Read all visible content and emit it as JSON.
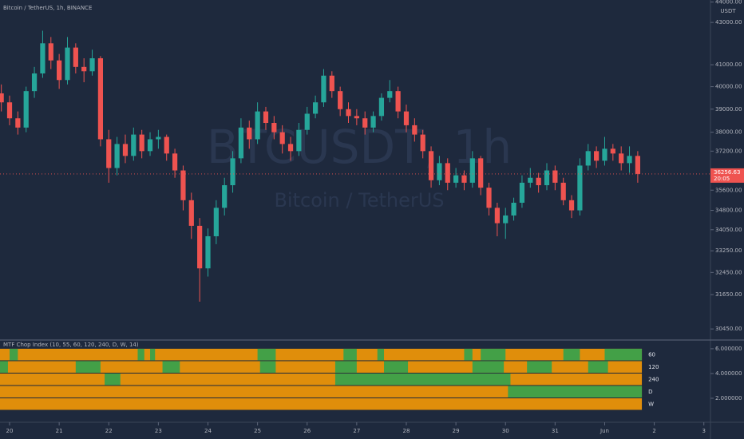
{
  "header": {
    "symbol": "Bitcoin / TetherUS, 1h, BINANCE",
    "currency": "USDT",
    "watermark": "BTCUSDT, 1h",
    "watermark_sub": "Bitcoin / TetherUS",
    "last_price": 36256.63,
    "countdown": "20:05"
  },
  "chart_data": {
    "type": "candlestick",
    "log_scale": true,
    "up_color": "#26a69a",
    "down_color": "#ef5350",
    "ylim": [
      30100,
      44100
    ],
    "yticks": [
      {
        "value": 44000,
        "label": "44000.00"
      },
      {
        "value": 43000,
        "label": "43000.00"
      },
      {
        "value": 41000,
        "label": "41000.00"
      },
      {
        "value": 40000,
        "label": "40000.00"
      },
      {
        "value": 39000,
        "label": "39000.00"
      },
      {
        "value": 38000,
        "label": "38000.00"
      },
      {
        "value": 37200,
        "label": "37200.00"
      },
      {
        "value": 35600,
        "label": "35600.00"
      },
      {
        "value": 34800,
        "label": "34800.00"
      },
      {
        "value": 34050,
        "label": "34050.00"
      },
      {
        "value": 33250,
        "label": "33250.00"
      },
      {
        "value": 32450,
        "label": "32450.00"
      },
      {
        "value": 31650,
        "label": "31650.00"
      },
      {
        "value": 30450,
        "label": "30450.00"
      }
    ],
    "xlim": [
      -0.16,
      85.8
    ],
    "xticks": [
      {
        "value": 1,
        "label": "20"
      },
      {
        "value": 7,
        "label": "21"
      },
      {
        "value": 13,
        "label": "22"
      },
      {
        "value": 19,
        "label": "23"
      },
      {
        "value": 25,
        "label": "24"
      },
      {
        "value": 31,
        "label": "25"
      },
      {
        "value": 37,
        "label": "26"
      },
      {
        "value": 43,
        "label": "27"
      },
      {
        "value": 49,
        "label": "28"
      },
      {
        "value": 55,
        "label": "29"
      },
      {
        "value": 61,
        "label": "30"
      },
      {
        "value": 67,
        "label": "31"
      },
      {
        "value": 73,
        "label": "Jun"
      },
      {
        "value": 79,
        "label": "2"
      },
      {
        "value": 85,
        "label": "3"
      }
    ],
    "candles": [
      [
        39700,
        40100,
        38900,
        39300
      ],
      [
        39300,
        39600,
        38300,
        38600
      ],
      [
        38600,
        38900,
        37900,
        38200
      ],
      [
        38200,
        40000,
        38000,
        39800
      ],
      [
        39800,
        40900,
        39500,
        40600
      ],
      [
        40600,
        42600,
        40400,
        42000
      ],
      [
        42000,
        42300,
        40800,
        41200
      ],
      [
        41200,
        41500,
        39900,
        40300
      ],
      [
        40300,
        42300,
        40100,
        41800
      ],
      [
        41800,
        42000,
        40600,
        40900
      ],
      [
        40900,
        41300,
        40200,
        40700
      ],
      [
        40700,
        41700,
        40500,
        41300
      ],
      [
        41300,
        41400,
        37400,
        37700
      ],
      [
        37700,
        38100,
        35900,
        36500
      ],
      [
        36500,
        37800,
        36200,
        37500
      ],
      [
        37500,
        37900,
        36700,
        37000
      ],
      [
        37000,
        38200,
        36800,
        37900
      ],
      [
        37900,
        38100,
        36900,
        37200
      ],
      [
        37200,
        38000,
        37000,
        37700
      ],
      [
        37700,
        38100,
        37300,
        37800
      ],
      [
        37800,
        37900,
        36800,
        37100
      ],
      [
        37100,
        37300,
        36100,
        36400
      ],
      [
        36400,
        36600,
        34800,
        35200
      ],
      [
        35200,
        35500,
        33700,
        34200
      ],
      [
        34200,
        34500,
        31400,
        32600
      ],
      [
        32600,
        34100,
        32300,
        33800
      ],
      [
        33800,
        35200,
        33500,
        34900
      ],
      [
        34900,
        36100,
        34600,
        35800
      ],
      [
        35800,
        37200,
        35500,
        36900
      ],
      [
        36900,
        38600,
        36700,
        38200
      ],
      [
        38200,
        38500,
        37300,
        37700
      ],
      [
        37700,
        39300,
        37500,
        38900
      ],
      [
        38900,
        39100,
        38100,
        38400
      ],
      [
        38400,
        38700,
        37700,
        38000
      ],
      [
        38000,
        38300,
        37100,
        37500
      ],
      [
        37500,
        37800,
        36800,
        37200
      ],
      [
        37200,
        38400,
        37000,
        38100
      ],
      [
        38100,
        39100,
        37900,
        38800
      ],
      [
        38800,
        39600,
        38600,
        39300
      ],
      [
        39300,
        40800,
        39100,
        40500
      ],
      [
        40500,
        40700,
        39500,
        39800
      ],
      [
        39800,
        40000,
        38700,
        39000
      ],
      [
        39000,
        39300,
        38400,
        38700
      ],
      [
        38700,
        39000,
        38300,
        38600
      ],
      [
        38600,
        38900,
        37900,
        38200
      ],
      [
        38200,
        38900,
        38000,
        38700
      ],
      [
        38700,
        39700,
        38500,
        39500
      ],
      [
        39500,
        40300,
        39300,
        39800
      ],
      [
        39800,
        40000,
        38600,
        38900
      ],
      [
        38900,
        39200,
        38000,
        38300
      ],
      [
        38300,
        38600,
        37600,
        37900
      ],
      [
        37900,
        38100,
        36900,
        37200
      ],
      [
        37200,
        37400,
        35700,
        36000
      ],
      [
        36000,
        37000,
        35800,
        36700
      ],
      [
        36700,
        36900,
        35600,
        35900
      ],
      [
        35900,
        36500,
        35700,
        36200
      ],
      [
        36200,
        36400,
        35600,
        35900
      ],
      [
        35900,
        37200,
        35700,
        36900
      ],
      [
        36900,
        37000,
        35400,
        35700
      ],
      [
        35700,
        35900,
        34600,
        34900
      ],
      [
        34900,
        35100,
        33800,
        34300
      ],
      [
        34300,
        34900,
        33700,
        34600
      ],
      [
        34600,
        35300,
        34400,
        35100
      ],
      [
        35100,
        36200,
        34900,
        35900
      ],
      [
        35900,
        36500,
        35700,
        36100
      ],
      [
        36100,
        36300,
        35500,
        35800
      ],
      [
        35800,
        36700,
        35600,
        36400
      ],
      [
        36400,
        36600,
        35600,
        35900
      ],
      [
        35900,
        36100,
        35000,
        35200
      ],
      [
        35200,
        35400,
        34500,
        34800
      ],
      [
        34800,
        36900,
        34600,
        36600
      ],
      [
        36600,
        37500,
        36400,
        37200
      ],
      [
        37200,
        37400,
        36500,
        36800
      ],
      [
        36800,
        37800,
        36600,
        37300
      ],
      [
        37300,
        37500,
        36800,
        37100
      ],
      [
        37100,
        37400,
        36400,
        36700
      ],
      [
        36700,
        37400,
        36300,
        37000
      ],
      [
        37000,
        37200,
        35900,
        36256.63
      ]
    ],
    "indicator": {
      "title": "MTF Chop Index (10, 55, 60, 120, 240, D, W, 14)",
      "base_color": "#e08e0b",
      "green_color": "#43a047",
      "end": 77.5,
      "ylim": [
        0.58,
        6.06
      ],
      "yticks": [
        {
          "value": 6,
          "label": "6.000000"
        },
        {
          "value": 4,
          "label": "4.000000"
        },
        {
          "value": 2,
          "label": "2.000000"
        }
      ],
      "series": [
        {
          "name": "60",
          "top": 6,
          "green": [
            [
              1,
              2
            ],
            [
              16.5,
              17.3
            ],
            [
              18,
              18.6
            ],
            [
              31,
              33.2
            ],
            [
              41.4,
              43
            ],
            [
              45.5,
              46.3
            ],
            [
              56,
              57
            ],
            [
              58,
              61
            ],
            [
              68,
              70
            ],
            [
              73,
              77.5
            ]
          ]
        },
        {
          "name": "120",
          "top": 5,
          "green": [
            [
              -0.2,
              0.8
            ],
            [
              9,
              12
            ],
            [
              19.5,
              21.6
            ],
            [
              31.3,
              33.2
            ],
            [
              40.4,
              43
            ],
            [
              46.3,
              49.2
            ],
            [
              57,
              60.8
            ],
            [
              63.6,
              66.6
            ],
            [
              71,
              73.4
            ]
          ]
        },
        {
          "name": "240",
          "top": 4,
          "green": [
            [
              12.5,
              14.4
            ],
            [
              40.4,
              61.6
            ]
          ]
        },
        {
          "name": "D",
          "top": 3,
          "green": [
            [
              61.3,
              77.5
            ]
          ]
        },
        {
          "name": "W",
          "top": 2,
          "green": []
        }
      ]
    }
  }
}
